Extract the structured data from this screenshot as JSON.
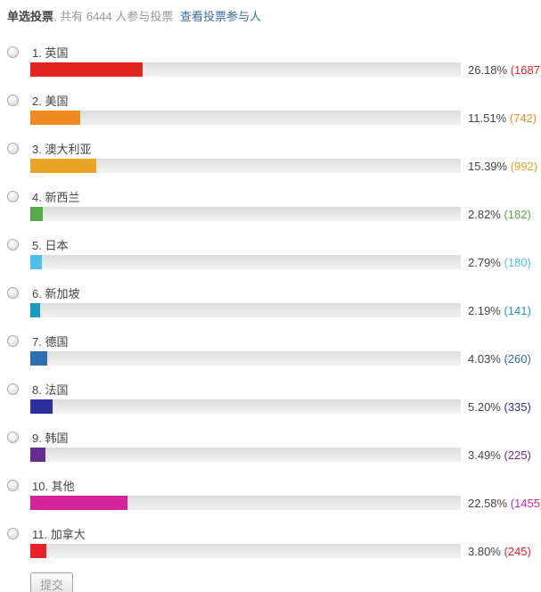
{
  "header": {
    "title": "单选投票",
    "participation": ", 共有 6444 人参与投票",
    "view_link": "查看投票参与人",
    "total_votes": 6444
  },
  "poll": {
    "type": "single-choice",
    "options": [
      {
        "index": 1,
        "name": "英国",
        "percent": 26.18,
        "count": 1687,
        "color": "#E2241E"
      },
      {
        "index": 2,
        "name": "美国",
        "percent": 11.51,
        "count": 742,
        "color": "#F18A23"
      },
      {
        "index": 3,
        "name": "澳大利亚",
        "percent": 15.39,
        "count": 992,
        "color": "#E9A424"
      },
      {
        "index": 4,
        "name": "新西兰",
        "percent": 2.82,
        "count": 182,
        "color": "#55A946"
      },
      {
        "index": 5,
        "name": "日本",
        "percent": 2.79,
        "count": 180,
        "color": "#4DC0EE"
      },
      {
        "index": 6,
        "name": "新加坡",
        "percent": 2.19,
        "count": 141,
        "color": "#189BC2"
      },
      {
        "index": 7,
        "name": "德国",
        "percent": 4.03,
        "count": 260,
        "color": "#2F6CB3"
      },
      {
        "index": 8,
        "name": "法国",
        "percent": 5.2,
        "count": 335,
        "color": "#2C2E9C"
      },
      {
        "index": 9,
        "name": "韩国",
        "percent": 3.49,
        "count": 225,
        "color": "#662D91"
      },
      {
        "index": 10,
        "name": "其他",
        "percent": 22.58,
        "count": 1455,
        "color": "#D4249C"
      },
      {
        "index": 11,
        "name": "加拿大",
        "percent": 3.8,
        "count": 245,
        "color": "#E92128"
      }
    ]
  },
  "footer": {
    "submit_label": "提交"
  },
  "colors": {
    "header_text": "#444444",
    "muted_text": "#999999",
    "link": "#3A6EA5",
    "percent_text": "#444444",
    "track": "#E5E5E5"
  }
}
